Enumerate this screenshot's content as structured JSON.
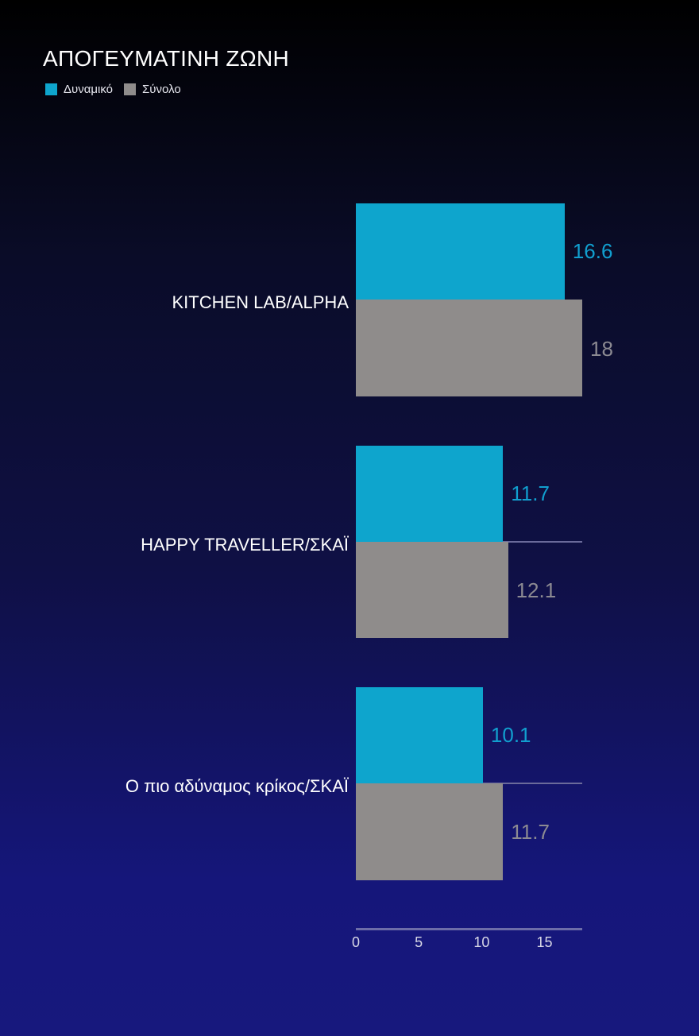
{
  "title": "ΑΠΟΓΕΥΜΑΤΙΝΗ ΖΩΝΗ",
  "legend": [
    {
      "label": "Δυναμικό",
      "color": "#0ea5cd"
    },
    {
      "label": "Σύνολο",
      "color": "#8f8c8b"
    }
  ],
  "colors": {
    "series_1": "#0ea5cd",
    "series_2": "#8f8c8b",
    "label_series_1": "#119fcf",
    "label_series_2": "#8c8a92"
  },
  "axis": {
    "ticks": [
      "0",
      "5",
      "10",
      "15"
    ]
  },
  "categories": [
    {
      "name": "KITCHEN LAB/ALPHA",
      "dynamiko": "16.6",
      "synolo": "18"
    },
    {
      "name": "HAPPY TRAVELLER/ΣΚΑΪ",
      "dynamiko": "11.7",
      "synolo": "12.1"
    },
    {
      "name": "Ο πιο αδύναμος κρίκος/ΣΚΑΪ",
      "dynamiko": "10.1",
      "synolo": "11.7"
    }
  ],
  "chart_data": {
    "type": "bar",
    "orientation": "horizontal",
    "title": "ΑΠΟΓΕΥΜΑΤΙΝΗ ΖΩΝΗ",
    "categories": [
      "KITCHEN LAB/ALPHA",
      "HAPPY TRAVELLER/ΣΚΑΪ",
      "Ο πιο αδύναμος κρίκος/ΣΚΑΪ"
    ],
    "series": [
      {
        "name": "Δυναμικό",
        "values": [
          16.6,
          11.7,
          10.1
        ],
        "color": "#0ea5cd"
      },
      {
        "name": "Σύνολο",
        "values": [
          18,
          12.1,
          11.7
        ],
        "color": "#8f8c8b"
      }
    ],
    "xlabel": "",
    "ylabel": "",
    "xlim": [
      0,
      18
    ],
    "xticks": [
      0,
      5,
      10,
      15
    ],
    "grid": false,
    "legend_position": "top-left",
    "data_labels": true
  }
}
